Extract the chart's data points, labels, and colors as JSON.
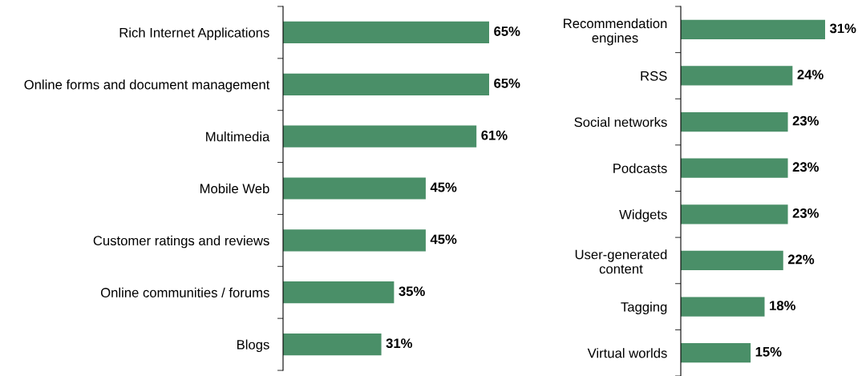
{
  "chart_data": [
    {
      "type": "bar",
      "orientation": "horizontal",
      "categories": [
        "Rich Internet Applications",
        "Online forms and document management",
        "Multimedia",
        "Mobile Web",
        "Customer ratings and reviews",
        "Online communities / forums",
        "Blogs"
      ],
      "values": [
        65,
        65,
        61,
        45,
        45,
        35,
        31
      ],
      "color": "#4a8f68",
      "value_labels": [
        "65%",
        "65%",
        "61%",
        "45%",
        "45%",
        "35%",
        "31%"
      ],
      "grid": false,
      "legend": false,
      "tick_labels": "y"
    },
    {
      "type": "bar",
      "orientation": "horizontal",
      "categories": [
        "Recommendation\nengines",
        "RSS",
        "Social networks",
        "Podcasts",
        "Widgets",
        "User-generated\ncontent",
        "Tagging",
        "Virtual worlds"
      ],
      "values": [
        31,
        24,
        23,
        23,
        23,
        22,
        18,
        15
      ],
      "color": "#4a8f68",
      "value_labels": [
        "31%",
        "24%",
        "23%",
        "23%",
        "23%",
        "22%",
        "18%",
        "15%"
      ],
      "grid": false,
      "legend": false,
      "tick_labels": "y"
    }
  ]
}
